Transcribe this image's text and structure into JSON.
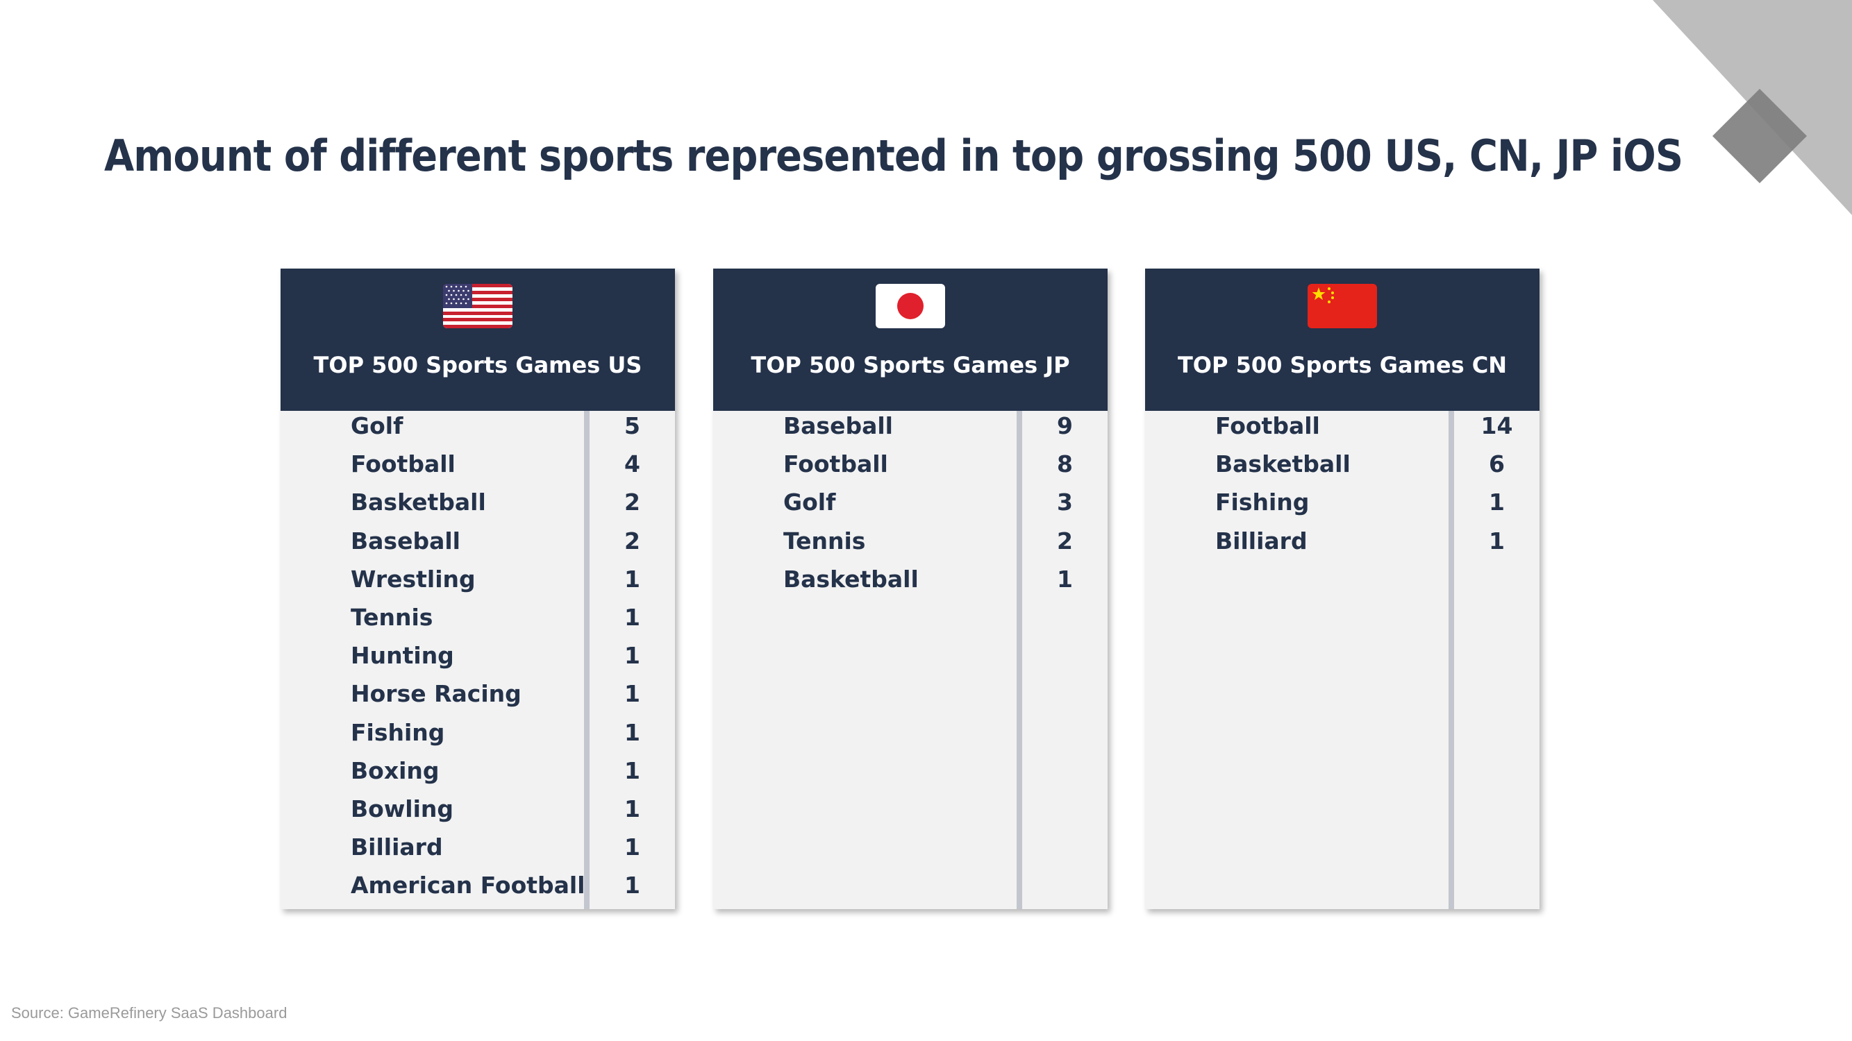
{
  "title": "Amount of different sports represented in top grossing 500 US, CN, JP iOS",
  "source": "Source: GameRefinery SaaS Dashboard",
  "colors": {
    "header_bg": "#24324a",
    "panel_bg": "#f2f2f2",
    "divider": "#c3c6cf",
    "text": "#24324a",
    "corner_light": "#bdbdbd",
    "corner_dark": "#7d7d7d"
  },
  "chart_data": [
    {
      "type": "table",
      "title": "TOP 500 Sports Games US",
      "icon": "us-flag-icon",
      "rows": [
        {
          "sport": "Golf",
          "count": 5
        },
        {
          "sport": "Football",
          "count": 4
        },
        {
          "sport": "Basketball",
          "count": 2
        },
        {
          "sport": "Baseball",
          "count": 2
        },
        {
          "sport": "Wrestling",
          "count": 1
        },
        {
          "sport": "Tennis",
          "count": 1
        },
        {
          "sport": "Hunting",
          "count": 1
        },
        {
          "sport": "Horse Racing",
          "count": 1
        },
        {
          "sport": "Fishing",
          "count": 1
        },
        {
          "sport": "Boxing",
          "count": 1
        },
        {
          "sport": "Bowling",
          "count": 1
        },
        {
          "sport": "Billiard",
          "count": 1
        },
        {
          "sport": "American Football",
          "count": 1
        }
      ]
    },
    {
      "type": "table",
      "title": "TOP 500 Sports Games JP",
      "icon": "japan-flag-icon",
      "rows": [
        {
          "sport": "Baseball",
          "count": 9
        },
        {
          "sport": "Football",
          "count": 8
        },
        {
          "sport": "Golf",
          "count": 3
        },
        {
          "sport": "Tennis",
          "count": 2
        },
        {
          "sport": "Basketball",
          "count": 1
        }
      ]
    },
    {
      "type": "table",
      "title": "TOP 500 Sports Games CN",
      "icon": "china-flag-icon",
      "rows": [
        {
          "sport": "Football",
          "count": 14
        },
        {
          "sport": "Basketball",
          "count": 6
        },
        {
          "sport": "Fishing",
          "count": 1
        },
        {
          "sport": "Billiard",
          "count": 1
        }
      ]
    }
  ]
}
